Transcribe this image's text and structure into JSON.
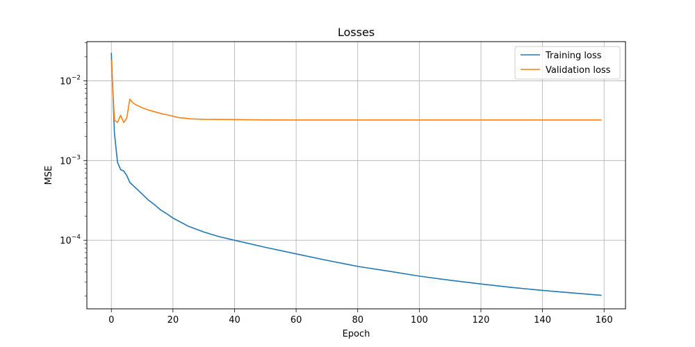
{
  "chart_data": {
    "type": "line",
    "title": "Losses",
    "xlabel": "Epoch",
    "ylabel": "MSE",
    "yscale": "log",
    "xlim": [
      -7.95,
      166.95
    ],
    "ylim": [
      1.38e-05,
      0.031
    ],
    "x_ticks": [
      0,
      20,
      40,
      60,
      80,
      100,
      120,
      140,
      160
    ],
    "y_ticks": [
      {
        "value": 0.0001,
        "base": "10",
        "exp": "−4"
      },
      {
        "value": 0.001,
        "base": "10",
        "exp": "−3"
      },
      {
        "value": 0.01,
        "base": "10",
        "exp": "−2"
      }
    ],
    "grid": true,
    "legend_position": "top-right",
    "series": [
      {
        "name": "Training loss",
        "color": "#1f77b4",
        "points": [
          [
            0,
            0.022
          ],
          [
            1,
            0.0022
          ],
          [
            2,
            0.00095
          ],
          [
            3,
            0.00077
          ],
          [
            4,
            0.00074
          ],
          [
            5,
            0.00065
          ],
          [
            6,
            0.00053
          ],
          [
            8,
            0.00045
          ],
          [
            10,
            0.00038
          ],
          [
            12,
            0.00032
          ],
          [
            14,
            0.00028
          ],
          [
            16,
            0.00024
          ],
          [
            18,
            0.000215
          ],
          [
            20,
            0.00019
          ],
          [
            25,
            0.00015
          ],
          [
            30,
            0.000127
          ],
          [
            35,
            0.000111
          ],
          [
            40,
            0.0001
          ],
          [
            50,
            8.15e-05
          ],
          [
            60,
            6.75e-05
          ],
          [
            70,
            5.6e-05
          ],
          [
            80,
            4.7e-05
          ],
          [
            90,
            4.1e-05
          ],
          [
            100,
            3.55e-05
          ],
          [
            110,
            3.15e-05
          ],
          [
            120,
            2.83e-05
          ],
          [
            130,
            2.56e-05
          ],
          [
            140,
            2.35e-05
          ],
          [
            150,
            2.18e-05
          ],
          [
            159,
            2.04e-05
          ]
        ]
      },
      {
        "name": "Validation loss",
        "color": "#ff7f0e",
        "points": [
          [
            0,
            0.018
          ],
          [
            1,
            0.0032
          ],
          [
            2,
            0.003
          ],
          [
            3,
            0.0037
          ],
          [
            4,
            0.003
          ],
          [
            5,
            0.0034
          ],
          [
            6,
            0.0059
          ],
          [
            7,
            0.0053
          ],
          [
            8,
            0.005
          ],
          [
            10,
            0.0046
          ],
          [
            12,
            0.0043
          ],
          [
            14,
            0.0041
          ],
          [
            16,
            0.0039
          ],
          [
            18,
            0.00375
          ],
          [
            20,
            0.0036
          ],
          [
            22,
            0.00345
          ],
          [
            24,
            0.0034
          ],
          [
            26,
            0.00333
          ],
          [
            30,
            0.00329
          ],
          [
            40,
            0.00326
          ],
          [
            50,
            0.00323
          ],
          [
            60,
            0.00322
          ],
          [
            80,
            0.00322
          ],
          [
            100,
            0.00322
          ],
          [
            120,
            0.00322
          ],
          [
            140,
            0.00322
          ],
          [
            159,
            0.00322
          ]
        ]
      }
    ]
  }
}
